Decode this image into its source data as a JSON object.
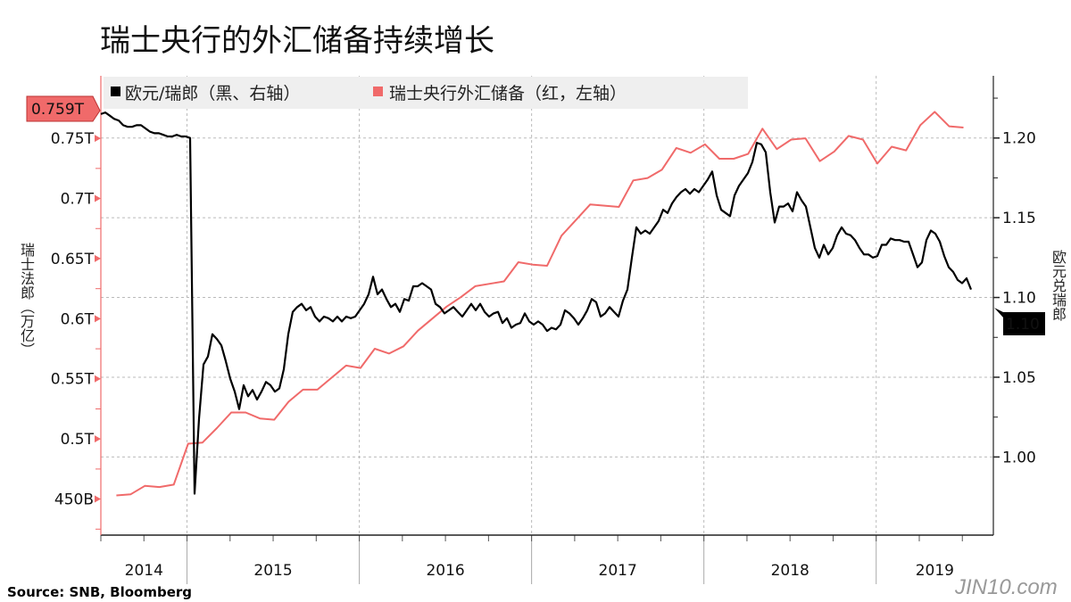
{
  "title": "瑞士央行的外汇储备持续增长",
  "source": "Source: SNB, Bloomberg",
  "watermark": "JIN10.com",
  "colors": {
    "fx": "#000000",
    "reserves": "#f06a6a",
    "label_bg": "#f06a6a",
    "grid": "#bbbbbb"
  },
  "chart_data": {
    "type": "line",
    "title": "瑞士央行的外汇储备持续增长",
    "legend": [
      "欧元/瑞郎（黑、右轴）",
      "瑞士央行外汇储备（红，左轴）"
    ],
    "legend_placement": "top-left",
    "x_ticks": [
      "2014",
      "2015",
      "2016",
      "2017",
      "2018",
      "2019"
    ],
    "xlim": [
      2014.5,
      2019.68
    ],
    "left_axis": {
      "label": "瑞士法郎（万亿）",
      "ylim": [
        0.42,
        0.802
      ],
      "ticks": [
        {
          "v": 0.45,
          "t": "450B"
        },
        {
          "v": 0.5,
          "t": "0.5T"
        },
        {
          "v": 0.55,
          "t": "0.55T"
        },
        {
          "v": 0.6,
          "t": "0.6T"
        },
        {
          "v": 0.65,
          "t": "0.65T"
        },
        {
          "v": 0.7,
          "t": "0.7T"
        },
        {
          "v": 0.75,
          "t": "0.75T"
        }
      ],
      "last_value_label": "0.759T"
    },
    "right_axis": {
      "label": "欧元兑瑞郎",
      "ylim": [
        0.951,
        1.239
      ],
      "ticks": [
        {
          "v": 1.0,
          "t": "1.00"
        },
        {
          "v": 1.05,
          "t": "1.05"
        },
        {
          "v": 1.1,
          "t": "1.10"
        },
        {
          "v": 1.15,
          "t": "1.15"
        },
        {
          "v": 1.2,
          "t": "1.20"
        }
      ],
      "last_value_label": "1.10"
    },
    "grid": true,
    "series": [
      {
        "name": "瑞士央行外汇储备",
        "axis": "left",
        "x_start": 2014.59,
        "x_step": 0.08333,
        "values": [
          0.453,
          0.454,
          0.461,
          0.46,
          0.462,
          0.496,
          0.497,
          0.509,
          0.522,
          0.522,
          0.517,
          0.516,
          0.531,
          0.541,
          0.541,
          0.551,
          0.561,
          0.559,
          0.575,
          0.571,
          0.577,
          0.59,
          0.6,
          0.61,
          0.618,
          0.627,
          0.629,
          0.631,
          0.647,
          0.645,
          0.644,
          0.669,
          0.682,
          0.695,
          0.694,
          0.693,
          0.715,
          0.717,
          0.724,
          0.742,
          0.738,
          0.745,
          0.733,
          0.733,
          0.737,
          0.758,
          0.741,
          0.749,
          0.75,
          0.731,
          0.739,
          0.752,
          0.749,
          0.729,
          0.743,
          0.74,
          0.761,
          0.772,
          0.76,
          0.759
        ]
      },
      {
        "name": "欧元/瑞郎",
        "axis": "right",
        "x_start": 2014.5,
        "x_step": 0.0259,
        "values": [
          1.215,
          1.216,
          1.214,
          1.212,
          1.211,
          1.208,
          1.207,
          1.207,
          1.208,
          1.208,
          1.206,
          1.204,
          1.203,
          1.203,
          1.202,
          1.201,
          1.201,
          1.202,
          1.201,
          1.201,
          1.2,
          0.977,
          1.024,
          1.058,
          1.063,
          1.077,
          1.074,
          1.07,
          1.06,
          1.049,
          1.041,
          1.03,
          1.045,
          1.038,
          1.042,
          1.036,
          1.041,
          1.047,
          1.045,
          1.041,
          1.043,
          1.055,
          1.077,
          1.091,
          1.094,
          1.096,
          1.092,
          1.094,
          1.088,
          1.085,
          1.088,
          1.087,
          1.085,
          1.088,
          1.085,
          1.088,
          1.087,
          1.088,
          1.092,
          1.096,
          1.102,
          1.113,
          1.102,
          1.105,
          1.099,
          1.094,
          1.096,
          1.091,
          1.099,
          1.098,
          1.107,
          1.107,
          1.109,
          1.107,
          1.105,
          1.096,
          1.094,
          1.09,
          1.092,
          1.094,
          1.091,
          1.088,
          1.092,
          1.096,
          1.092,
          1.096,
          1.091,
          1.088,
          1.09,
          1.091,
          1.084,
          1.087,
          1.081,
          1.083,
          1.084,
          1.09,
          1.085,
          1.083,
          1.085,
          1.083,
          1.079,
          1.081,
          1.08,
          1.083,
          1.092,
          1.09,
          1.087,
          1.083,
          1.087,
          1.092,
          1.099,
          1.097,
          1.088,
          1.09,
          1.094,
          1.091,
          1.088,
          1.098,
          1.105,
          1.125,
          1.144,
          1.14,
          1.142,
          1.14,
          1.144,
          1.148,
          1.155,
          1.153,
          1.159,
          1.163,
          1.166,
          1.168,
          1.165,
          1.168,
          1.166,
          1.17,
          1.174,
          1.179,
          1.164,
          1.155,
          1.153,
          1.151,
          1.164,
          1.17,
          1.174,
          1.178,
          1.185,
          1.197,
          1.196,
          1.191,
          1.166,
          1.147,
          1.157,
          1.157,
          1.159,
          1.154,
          1.166,
          1.161,
          1.157,
          1.144,
          1.131,
          1.125,
          1.133,
          1.127,
          1.131,
          1.139,
          1.144,
          1.14,
          1.139,
          1.136,
          1.131,
          1.127,
          1.127,
          1.125,
          1.126,
          1.133,
          1.133,
          1.137,
          1.136,
          1.136,
          1.135,
          1.135,
          1.127,
          1.119,
          1.122,
          1.136,
          1.142,
          1.14,
          1.135,
          1.126,
          1.119,
          1.116,
          1.111,
          1.109,
          1.112,
          1.105
        ]
      }
    ]
  }
}
